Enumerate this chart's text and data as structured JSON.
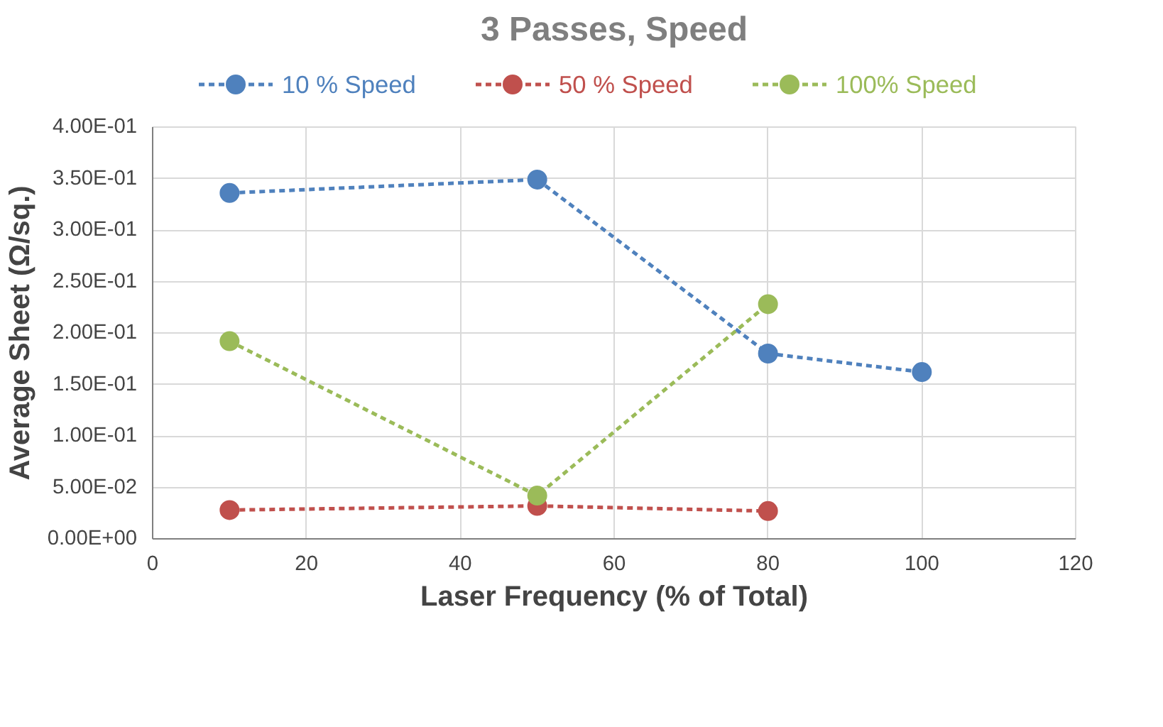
{
  "chart_data": {
    "type": "line",
    "title": "3 Passes, Speed",
    "xlabel": "Laser Frequency (% of Total)",
    "ylabel": "Average Sheet (Ω/sq.)",
    "x": [
      10,
      50,
      80,
      100
    ],
    "series": [
      {
        "name": "10 % Speed",
        "color": "#4f81bd",
        "values": [
          0.336,
          0.349,
          0.18,
          0.162
        ]
      },
      {
        "name": "50 % Speed",
        "color": "#c0504d",
        "values": [
          0.028,
          0.032,
          0.027,
          null
        ]
      },
      {
        "name": "100% Speed",
        "color": "#9bbb59",
        "values": [
          0.192,
          0.042,
          0.228,
          null
        ]
      }
    ],
    "xlim": [
      0,
      120
    ],
    "xticks": [
      0,
      20,
      40,
      60,
      80,
      100,
      120
    ],
    "ylim": [
      0,
      0.4
    ],
    "yticks": [
      {
        "value": 0,
        "label": "0.00E+00"
      },
      {
        "value": 0.05,
        "label": "5.00E-02"
      },
      {
        "value": 0.1,
        "label": "1.00E-01"
      },
      {
        "value": 0.15,
        "label": "1.50E-01"
      },
      {
        "value": 0.2,
        "label": "2.00E-01"
      },
      {
        "value": 0.25,
        "label": "2.50E-01"
      },
      {
        "value": 0.3,
        "label": "3.00E-01"
      },
      {
        "value": 0.35,
        "label": "3.50E-01"
      },
      {
        "value": 0.4,
        "label": "4.00E-01"
      }
    ],
    "grid": true,
    "legend": "top",
    "marker": "circle",
    "line_style": "dashed"
  }
}
